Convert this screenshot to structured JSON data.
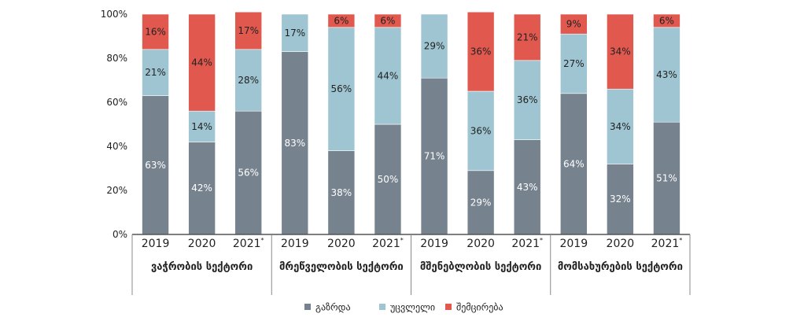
{
  "chart_data": {
    "type": "bar",
    "stacked": true,
    "percent": true,
    "y_ticks": [
      "0%",
      "20%",
      "40%",
      "60%",
      "80%",
      "100%"
    ],
    "ylim": [
      0,
      100
    ],
    "legend_position": "bottom",
    "series": [
      {
        "name": "გაზრდა",
        "color": "#76828e"
      },
      {
        "name": "უცვლელი",
        "color": "#9ec5d1"
      },
      {
        "name": "შემცირება",
        "color": "#e0584e"
      }
    ],
    "groups": [
      {
        "name": "ვაჭრობის სექტორი",
        "bars": [
          {
            "year": "2019",
            "values": [
              63,
              21,
              16
            ]
          },
          {
            "year": "2020",
            "values": [
              42,
              14,
              44
            ]
          },
          {
            "year": "2021*",
            "values": [
              56,
              28,
              17
            ]
          }
        ]
      },
      {
        "name": "მრეწველობის სექტორი",
        "bars": [
          {
            "year": "2019",
            "values": [
              83,
              17,
              0
            ]
          },
          {
            "year": "2020",
            "values": [
              38,
              56,
              6
            ]
          },
          {
            "year": "2021*",
            "values": [
              50,
              44,
              6
            ]
          }
        ]
      },
      {
        "name": "მშენებლობის სექტორი",
        "bars": [
          {
            "year": "2019",
            "values": [
              71,
              29,
              0
            ]
          },
          {
            "year": "2020",
            "values": [
              29,
              36,
              36
            ]
          },
          {
            "year": "2021*",
            "values": [
              43,
              36,
              21
            ]
          }
        ]
      },
      {
        "name": "მომსახურების სექტორი",
        "bars": [
          {
            "year": "2019",
            "values": [
              64,
              27,
              9
            ]
          },
          {
            "year": "2020",
            "values": [
              32,
              34,
              34
            ]
          },
          {
            "year": "2021*",
            "values": [
              51,
              43,
              6
            ]
          }
        ]
      }
    ]
  }
}
